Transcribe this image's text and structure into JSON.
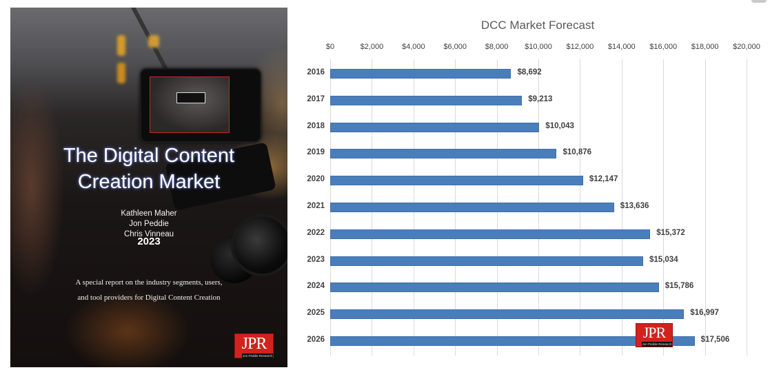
{
  "cover": {
    "title_line1": "The Digital Content",
    "title_line2": "Creation Market",
    "authors": [
      "Kathleen Maher",
      "Jon Peddie",
      "Chris Vinneau"
    ],
    "year": "2023",
    "description_line1": "A special report on the industry segments, users,",
    "description_line2": "and tool providers for Digital Content Creation",
    "logo": {
      "text": "JPR",
      "subtext": "Jon Peddie Research"
    }
  },
  "chart_logo": {
    "text": "JPR",
    "subtext": "Jon Peddie Research"
  },
  "colors": {
    "bar": "#4a7ebb",
    "gridline": "#d9d9d9",
    "text": "#404040",
    "title": "#595959",
    "logo_red": "#d0231f"
  },
  "chart_data": {
    "type": "bar",
    "orientation": "horizontal",
    "title": "DCC Market Forecast",
    "xlabel": "",
    "ylabel": "",
    "categories": [
      "2016",
      "2017",
      "2018",
      "2019",
      "2020",
      "2021",
      "2022",
      "2023",
      "2024",
      "2025",
      "2026"
    ],
    "values": [
      8692,
      9213,
      10043,
      10876,
      12147,
      13636,
      15372,
      15034,
      15786,
      16997,
      17506
    ],
    "value_labels": [
      "$8,692",
      "$9,213",
      "$10,043",
      "$10,876",
      "$12,147",
      "$13,636",
      "$15,372",
      "$15,034",
      "$15,786",
      "$16,997",
      "$17,506"
    ],
    "xlim": [
      0,
      20000
    ],
    "x_ticks": [
      "$0",
      "$2,000",
      "$4,000",
      "$6,000",
      "$8,000",
      "$10,000",
      "$12,000",
      "$14,000",
      "$16,000",
      "$18,000",
      "$20,000"
    ],
    "x_tick_values": [
      0,
      2000,
      4000,
      6000,
      8000,
      10000,
      12000,
      14000,
      16000,
      18000,
      20000
    ],
    "x_axis_position": "top",
    "grid": true,
    "legend": null,
    "data_labels": true
  }
}
